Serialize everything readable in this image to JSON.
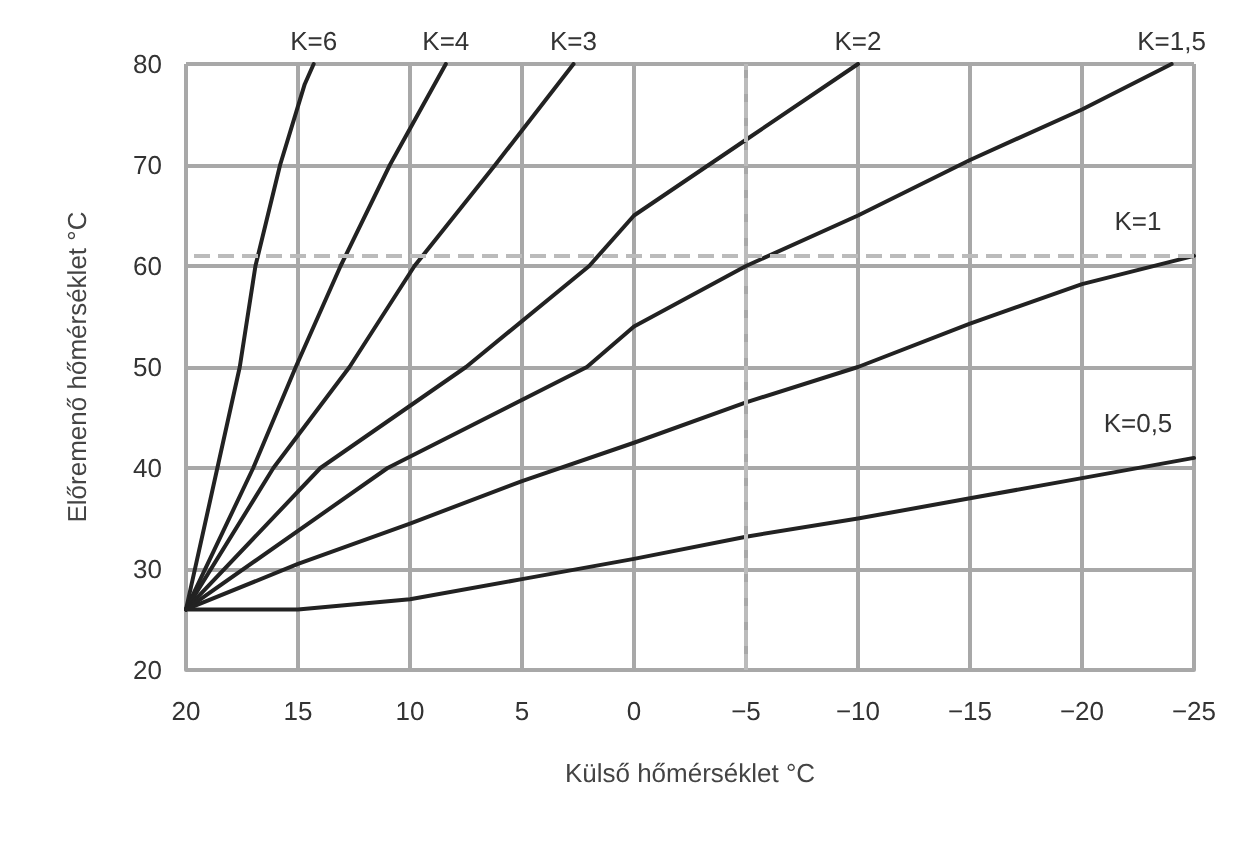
{
  "chart_data": {
    "type": "line",
    "xlabel": "Külső hőmérséklet °C",
    "ylabel": "Előremenő hőmérséklet °C",
    "xlim": [
      20,
      -25
    ],
    "xticks": [
      20,
      15,
      10,
      5,
      0,
      {
        "value": -5,
        "label": "−5"
      },
      {
        "value": -10,
        "label": "−10"
      },
      {
        "value": -15,
        "label": "−15"
      },
      {
        "value": -20,
        "label": "−20"
      },
      {
        "value": -25,
        "label": "−25"
      }
    ],
    "ylim": [
      20,
      80
    ],
    "yticks": [
      20,
      30,
      40,
      50,
      60,
      70,
      80
    ],
    "grid": true,
    "legend": false,
    "marker": "none",
    "line_style": "solid",
    "series": [
      {
        "name": "K=6",
        "color": "#222222",
        "x": [
          20,
          17.6,
          16.9,
          15.8,
          14.7,
          14.3
        ],
        "values": [
          26,
          50,
          60,
          70,
          78,
          80
        ]
      },
      {
        "name": "K=4",
        "color": "#222222",
        "x": [
          20,
          17,
          15.1,
          13.1,
          10.9,
          8.4
        ],
        "values": [
          26,
          40,
          50,
          60,
          70,
          80
        ]
      },
      {
        "name": "K=3",
        "color": "#222222",
        "x": [
          20,
          16.1,
          12.7,
          9.8,
          6.2,
          2.7
        ],
        "values": [
          26,
          40,
          50,
          60,
          70,
          80
        ]
      },
      {
        "name": "K=2",
        "color": "#222222",
        "x": [
          20,
          14,
          7.5,
          2,
          0,
          -5,
          -10
        ],
        "values": [
          26,
          40,
          50,
          60,
          65,
          72.5,
          80
        ]
      },
      {
        "name": "K=1,5",
        "color": "#222222",
        "x": [
          20,
          11,
          2.1,
          0,
          -5,
          -10,
          -15,
          -20,
          -24
        ],
        "values": [
          26,
          40,
          50,
          54,
          60,
          65,
          70.5,
          75.5,
          80
        ]
      },
      {
        "name": "K=1",
        "color": "#222222",
        "x": [
          20,
          15,
          10,
          5,
          0,
          -5,
          -10,
          -15,
          -20,
          -25
        ],
        "values": [
          26,
          30.5,
          34.5,
          38.7,
          42.5,
          46.5,
          50,
          54.3,
          58.2,
          61
        ]
      },
      {
        "name": "K=0,5",
        "color": "#222222",
        "x": [
          20,
          15,
          10,
          5,
          0,
          -5,
          -10,
          -15,
          -20,
          -25
        ],
        "values": [
          26,
          26,
          27,
          29,
          31,
          33.2,
          35,
          37,
          39,
          41
        ]
      }
    ],
    "ref_lines": [
      {
        "axis": "y",
        "value": 61,
        "color": "#bbbbbb",
        "line_style": "dashed"
      },
      {
        "axis": "x",
        "value": -5,
        "color": "#bbbbbb",
        "line_style": "dashed"
      }
    ]
  }
}
